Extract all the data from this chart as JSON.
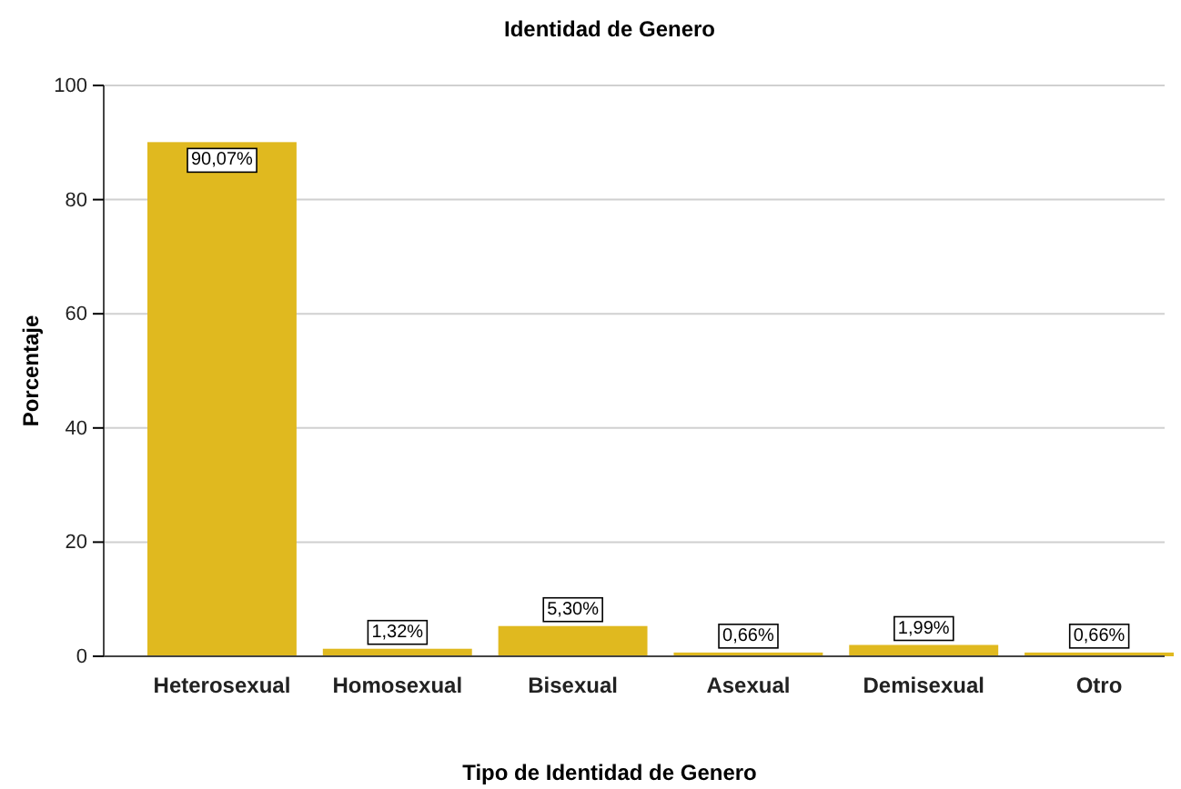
{
  "chart_data": {
    "type": "bar",
    "title": "Identidad de Genero",
    "xlabel": "Tipo de Identidad de Genero",
    "ylabel": "Porcentaje",
    "categories": [
      "Heterosexual",
      "Homosexual",
      "Bisexual",
      "Asexual",
      "Demisexual",
      "Otro"
    ],
    "values": [
      90.07,
      1.32,
      5.3,
      0.66,
      1.99,
      0.66
    ],
    "value_labels": [
      "90,07%",
      "1,32%",
      "5,30%",
      "0,66%",
      "1,99%",
      "0,66%"
    ],
    "color": "#e0b91f",
    "ylim": [
      0,
      100
    ],
    "yticks": [
      0,
      20,
      40,
      60,
      80,
      100
    ],
    "grid": "y"
  }
}
